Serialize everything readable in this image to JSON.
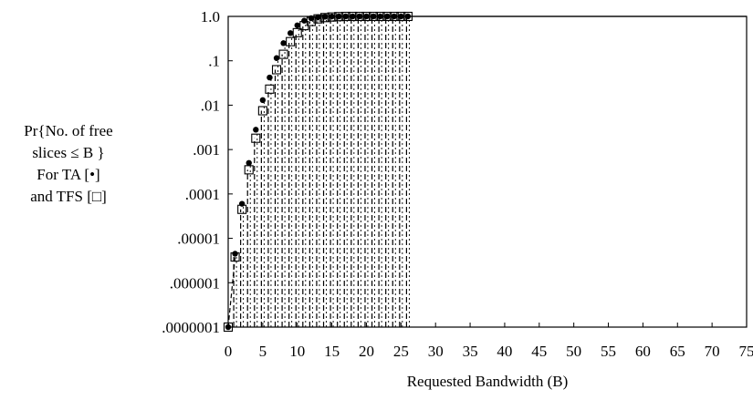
{
  "chart_data": {
    "type": "scatter",
    "ylabel_lines": [
      "Pr{No. of free",
      "slices ≤ B }",
      "For TA [•]",
      "and TFS [□]"
    ],
    "xlabel": "Requested Bandwidth (B)",
    "x_ticks": [
      "0",
      "5",
      "10",
      "15",
      "20",
      "25",
      "30",
      "35",
      "40",
      "45",
      "50",
      "55",
      "60",
      "65",
      "70",
      "75"
    ],
    "y_ticks": [
      "1.0",
      ".1",
      ".01",
      ".001",
      ".0001",
      ".00001",
      ".000001",
      ".0000001"
    ],
    "xlim": [
      0,
      75
    ],
    "ylim": [
      1e-07,
      1
    ],
    "y_scale": "log",
    "x": [
      0,
      1,
      2,
      3,
      4,
      5,
      6,
      7,
      8,
      9,
      10,
      11,
      12,
      13,
      14,
      15,
      16,
      17,
      18,
      19,
      20,
      21,
      22,
      23,
      24,
      25,
      26
    ],
    "series": [
      {
        "name": "TA",
        "marker": "filled-circle",
        "values": [
          1e-07,
          4.5e-06,
          6e-05,
          0.0005,
          0.0028,
          0.013,
          0.042,
          0.115,
          0.25,
          0.42,
          0.63,
          0.8,
          0.91,
          0.96,
          0.985,
          0.995,
          1,
          1,
          1,
          1,
          1,
          1,
          1,
          1,
          1,
          1,
          1
        ]
      },
      {
        "name": "TFS",
        "marker": "open-square",
        "values": [
          1e-07,
          3.8e-06,
          4.5e-05,
          0.00035,
          0.0018,
          0.0075,
          0.023,
          0.063,
          0.14,
          0.27,
          0.43,
          0.62,
          0.77,
          0.88,
          0.94,
          0.97,
          0.99,
          1,
          1,
          1,
          1,
          1,
          1,
          1,
          1,
          1,
          1
        ]
      }
    ],
    "grid": false
  }
}
